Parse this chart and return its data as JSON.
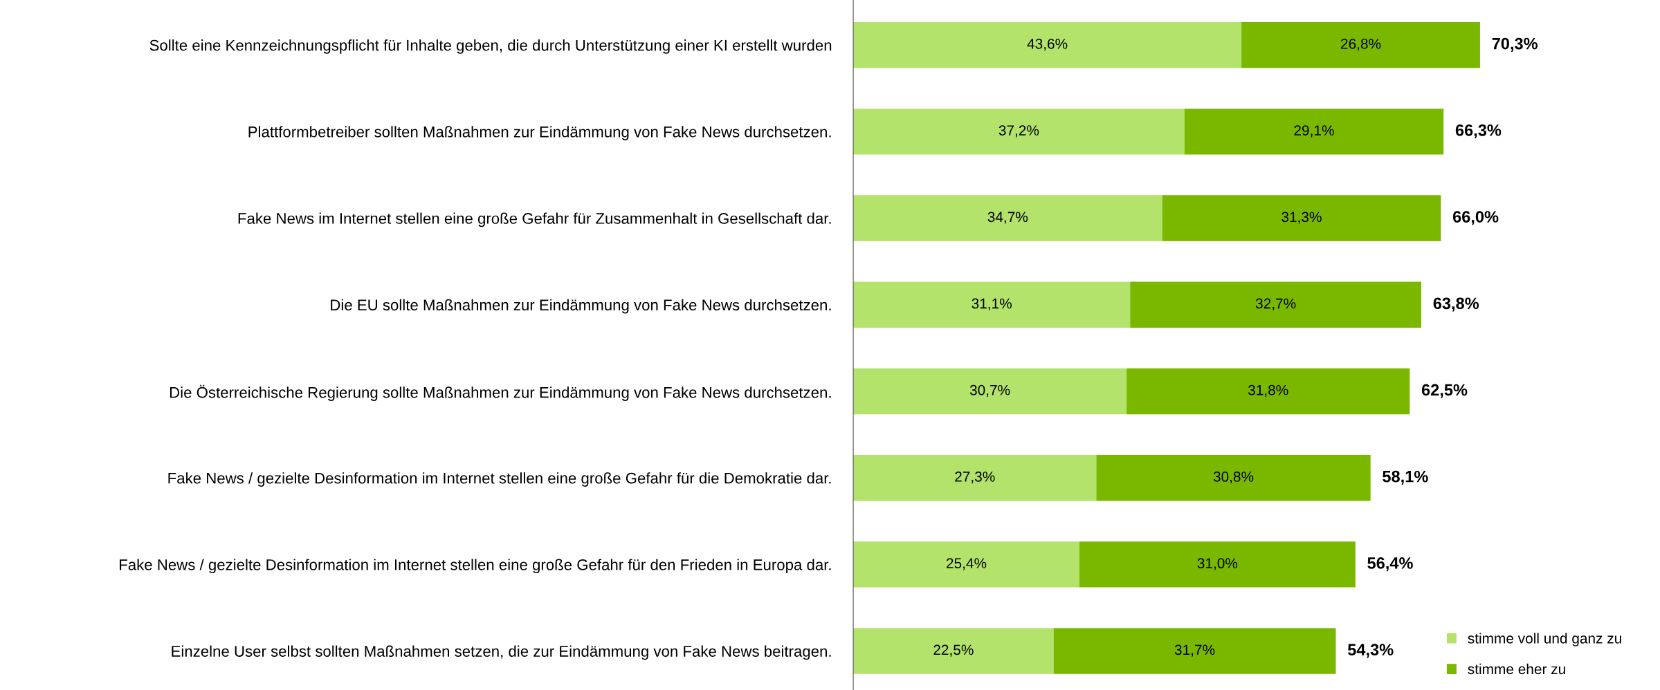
{
  "chart_data": {
    "type": "bar",
    "orientation": "horizontal",
    "stacked": true,
    "categories": [
      "Sollte eine Kennzeichnungspflicht für Inhalte geben, die durch Unterstützung einer KI erstellt wurden",
      "Plattformbetreiber sollten Maßnahmen zur Eindämmung von Fake News durchsetzen.",
      "Fake News im Internet stellen eine große Gefahr für Zusammenhalt in Gesellschaft dar.",
      "Die EU sollte Maßnahmen zur Eindämmung von Fake News durchsetzen.",
      "Die Österreichische Regierung sollte Maßnahmen zur Eindämmung von Fake News durchsetzen.",
      "Fake News / gezielte Desinformation im Internet stellen eine große Gefahr für die Demokratie dar.",
      "Fake News / gezielte Desinformation im Internet stellen eine große Gefahr für den Frieden in Europa dar.",
      "Einzelne User selbst sollten Maßnahmen setzen, die zur Eindämmung von Fake News beitragen."
    ],
    "series": [
      {
        "name": "stimme voll und ganz zu",
        "color": "#b3e36b",
        "values": [
          43.6,
          37.2,
          34.7,
          31.1,
          30.7,
          27.3,
          25.4,
          22.5
        ],
        "value_labels": [
          "43,6%",
          "37,2%",
          "34,7%",
          "31,1%",
          "30,7%",
          "27,3%",
          "25,4%",
          "22,5%"
        ]
      },
      {
        "name": "stimme eher zu",
        "color": "#7ab800",
        "values": [
          26.8,
          29.1,
          31.3,
          32.7,
          31.8,
          30.8,
          31.0,
          31.7
        ],
        "value_labels": [
          "26,8%",
          "29,1%",
          "31,3%",
          "32,7%",
          "31,8%",
          "30,8%",
          "31,0%",
          "31,7%"
        ]
      }
    ],
    "totals": [
      "70,3%",
      "66,3%",
      "66,0%",
      "63,8%",
      "62,5%",
      "58,1%",
      "56,4%",
      "54,3%"
    ],
    "tick_labels": "y",
    "legend": "bottom right",
    "grid": false
  }
}
